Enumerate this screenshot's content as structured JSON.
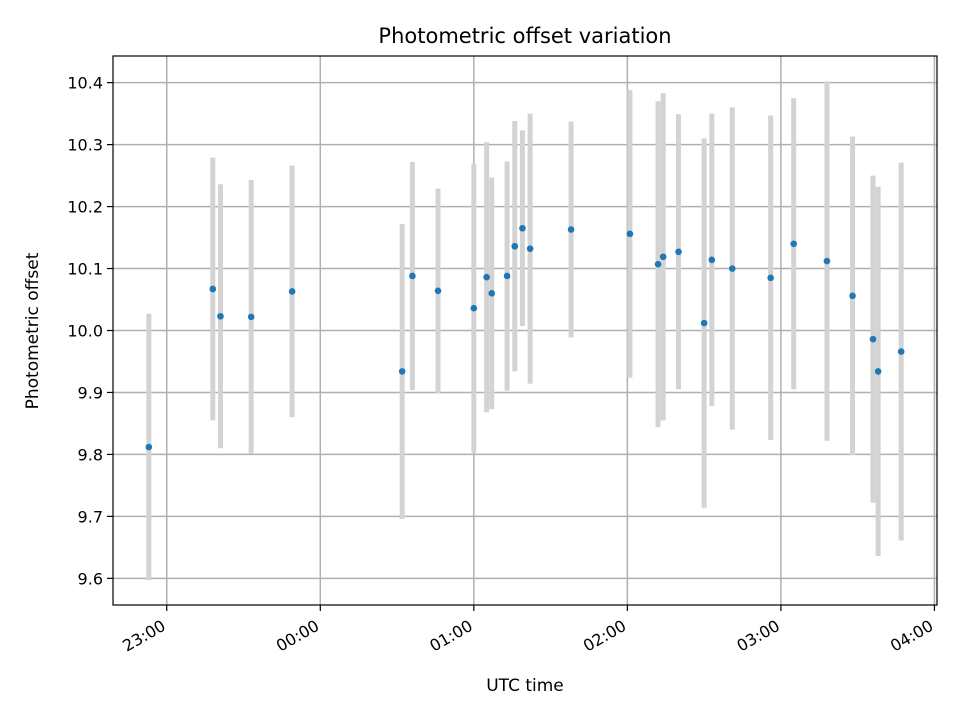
{
  "chart_data": {
    "type": "scatter",
    "title": "Photometric offset variation",
    "xlabel": "UTC time",
    "ylabel": "Photometric offset",
    "x_ticks": [
      "23:00",
      "00:00",
      "01:00",
      "02:00",
      "03:00",
      "04:00"
    ],
    "y_ticks": [
      "9.6",
      "9.7",
      "9.8",
      "9.9",
      "10.0",
      "10.1",
      "10.2",
      "10.3",
      "10.4"
    ],
    "xlim": [
      "22:39",
      "04:01"
    ],
    "ylim": [
      9.557,
      10.443
    ],
    "grid": true,
    "point_color": "#1f77b4",
    "errorbar_color": "#d3d3d3",
    "points": [
      {
        "x": "22:53",
        "y": 9.812,
        "yerr": 0.215
      },
      {
        "x": "23:18",
        "y": 10.067,
        "yerr": 0.212
      },
      {
        "x": "23:21",
        "y": 10.023,
        "yerr": 0.213
      },
      {
        "x": "23:33",
        "y": 10.022,
        "yerr": 0.221
      },
      {
        "x": "23:49",
        "y": 10.063,
        "yerr": 0.203
      },
      {
        "x": "00:32",
        "y": 9.934,
        "yerr": 0.238
      },
      {
        "x": "00:36",
        "y": 10.088,
        "yerr": 0.184
      },
      {
        "x": "00:46",
        "y": 10.064,
        "yerr": 0.165
      },
      {
        "x": "01:00",
        "y": 10.036,
        "yerr": 0.233
      },
      {
        "x": "01:05",
        "y": 10.086,
        "yerr": 0.218
      },
      {
        "x": "01:07",
        "y": 10.06,
        "yerr": 0.187
      },
      {
        "x": "01:13",
        "y": 10.088,
        "yerr": 0.185
      },
      {
        "x": "01:16",
        "y": 10.136,
        "yerr": 0.202
      },
      {
        "x": "01:19",
        "y": 10.165,
        "yerr": 0.158
      },
      {
        "x": "01:22",
        "y": 10.132,
        "yerr": 0.218
      },
      {
        "x": "01:38",
        "y": 10.163,
        "yerr": 0.174
      },
      {
        "x": "02:01",
        "y": 10.156,
        "yerr": 0.232
      },
      {
        "x": "02:12",
        "y": 10.107,
        "yerr": 0.263
      },
      {
        "x": "02:14",
        "y": 10.119,
        "yerr": 0.264
      },
      {
        "x": "02:20",
        "y": 10.127,
        "yerr": 0.222
      },
      {
        "x": "02:30",
        "y": 10.012,
        "yerr": 0.298
      },
      {
        "x": "02:33",
        "y": 10.114,
        "yerr": 0.236
      },
      {
        "x": "02:41",
        "y": 10.1,
        "yerr": 0.26
      },
      {
        "x": "02:56",
        "y": 10.085,
        "yerr": 0.262
      },
      {
        "x": "03:05",
        "y": 10.14,
        "yerr": 0.235
      },
      {
        "x": "03:18",
        "y": 10.112,
        "yerr": 0.29
      },
      {
        "x": "03:28",
        "y": 10.056,
        "yerr": 0.257
      },
      {
        "x": "03:36",
        "y": 9.986,
        "yerr": 0.264
      },
      {
        "x": "03:38",
        "y": 9.934,
        "yerr": 0.298
      },
      {
        "x": "03:47",
        "y": 9.966,
        "yerr": 0.305
      }
    ]
  }
}
